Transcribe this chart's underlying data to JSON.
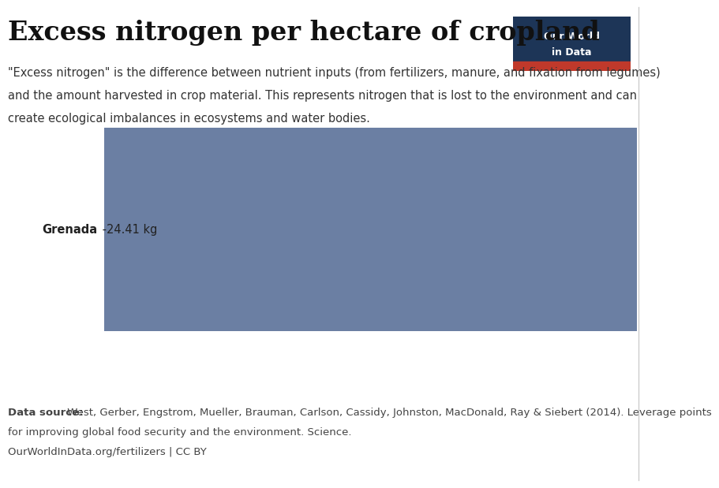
{
  "title": "Excess nitrogen per hectare of cropland",
  "subtitle_line1": "\"Excess nitrogen\" is the difference between nutrient inputs (from fertilizers, manure, and fixation from legumes)",
  "subtitle_line2": "and the amount harvested in crop material. This represents nitrogen that is lost to the environment and can",
  "subtitle_line3": "create ecological imbalances in ecosystems and water bodies.",
  "country": "Grenada",
  "value": -24.41,
  "value_label": "-24.41 kg",
  "bar_color": "#6b7fa3",
  "background_color": "#ffffff",
  "data_source_bold": "Data source:",
  "data_source_rest": " West, Gerber, Engstrom, Mueller, Brauman, Carlson, Cassidy, Johnston, MacDonald, Ray & Siebert (2014). Leverage points",
  "data_source_line2": "for improving global food security and the environment. Science.",
  "url": "OurWorldInData.org/fertilizers | CC BY",
  "logo_bg_color": "#1d3557",
  "logo_red_color": "#c0392b",
  "logo_text_line1": "Our World",
  "logo_text_line2": "in Data",
  "separator_color": "#cccccc",
  "title_fontsize": 24,
  "subtitle_fontsize": 10.5,
  "label_fontsize": 10.5,
  "footer_fontsize": 9.5
}
